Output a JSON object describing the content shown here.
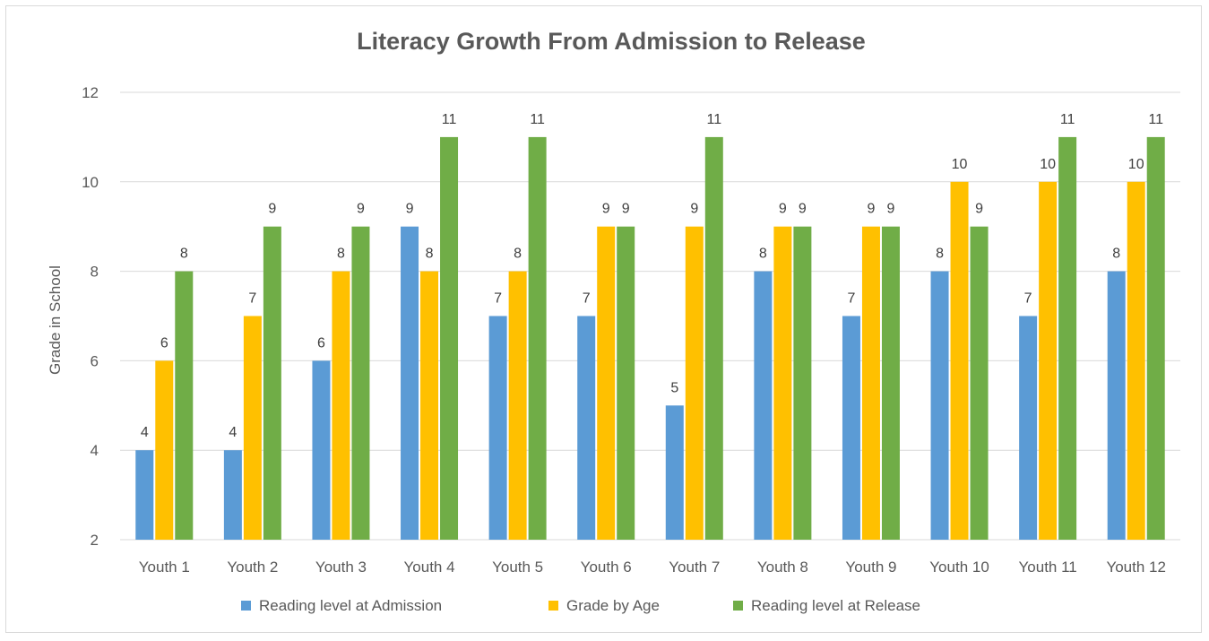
{
  "chart_data": {
    "type": "bar",
    "title": "Literacy Growth From Admission to Release",
    "xlabel": "",
    "ylabel": "Grade in School",
    "ylim": [
      2,
      12
    ],
    "yticks": [
      2,
      4,
      6,
      8,
      10,
      12
    ],
    "grid": true,
    "legend_position": "bottom",
    "categories": [
      "Youth 1",
      "Youth 2",
      "Youth 3",
      "Youth 4",
      "Youth 5",
      "Youth 6",
      "Youth 7",
      "Youth 8",
      "Youth 9",
      "Youth 10",
      "Youth 11",
      "Youth 12"
    ],
    "series": [
      {
        "name": "Reading level at Admission",
        "color": "#5b9bd5",
        "values": [
          4,
          4,
          6,
          9,
          7,
          7,
          5,
          8,
          7,
          8,
          7,
          8
        ]
      },
      {
        "name": "Grade by Age",
        "color": "#ffc000",
        "values": [
          6,
          7,
          8,
          8,
          8,
          9,
          9,
          9,
          9,
          10,
          10,
          10
        ]
      },
      {
        "name": "Reading level at Release",
        "color": "#70ad47",
        "values": [
          8,
          9,
          9,
          11,
          11,
          9,
          11,
          9,
          9,
          9,
          11,
          11
        ]
      }
    ]
  }
}
